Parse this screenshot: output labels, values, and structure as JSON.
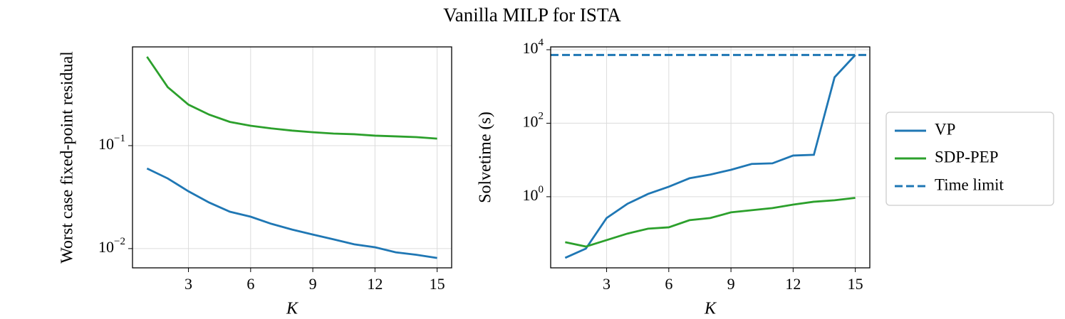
{
  "title": "Vanilla MILP for ISTA",
  "chart_data": [
    {
      "type": "line",
      "ylabel": "Worst case fixed-point residual",
      "xlabel": "K",
      "x": [
        1,
        2,
        3,
        4,
        5,
        6,
        7,
        8,
        9,
        10,
        11,
        12,
        13,
        14,
        15
      ],
      "series": [
        {
          "name": "VP",
          "color": "#1f77b4",
          "values": [
            0.06,
            0.048,
            0.036,
            0.028,
            0.0228,
            0.0204,
            0.0174,
            0.0153,
            0.0137,
            0.0123,
            0.011,
            0.0103,
            0.0092,
            0.0087,
            0.0081
          ]
        },
        {
          "name": "SDP-PEP",
          "color": "#2ca02c",
          "values": [
            0.73,
            0.37,
            0.25,
            0.2,
            0.17,
            0.156,
            0.147,
            0.14,
            0.135,
            0.131,
            0.129,
            0.125,
            0.123,
            0.121,
            0.117
          ]
        }
      ],
      "xlim": [
        0.3,
        15.7
      ],
      "ylim": [
        0.0065,
        0.91
      ],
      "yscale": "log",
      "grid": true,
      "xticks": [
        3,
        6,
        9,
        12,
        15
      ],
      "yticks": [
        {
          "value": 0.01,
          "label": "10",
          "exponent": "−2"
        },
        {
          "value": 0.1,
          "label": "10",
          "exponent": "−1"
        }
      ]
    },
    {
      "type": "line",
      "ylabel": "Solvetime (s)",
      "xlabel": "K",
      "x": [
        1,
        2,
        3,
        4,
        5,
        6,
        7,
        8,
        9,
        10,
        11,
        12,
        13,
        14,
        15
      ],
      "series": [
        {
          "name": "VP",
          "color": "#1f77b4",
          "values": [
            0.0217,
            0.0387,
            0.263,
            0.64,
            1.19,
            1.87,
            3.18,
            4.0,
            5.4,
            7.8,
            8.1,
            13.2,
            13.8,
            1780,
            7200
          ]
        },
        {
          "name": "SDP-PEP",
          "color": "#2ca02c",
          "values": [
            0.058,
            0.044,
            0.066,
            0.099,
            0.135,
            0.147,
            0.23,
            0.263,
            0.375,
            0.43,
            0.49,
            0.61,
            0.73,
            0.8,
            0.93
          ]
        }
      ],
      "hlines": [
        {
          "name": "Time limit",
          "value": 7200,
          "color": "#1f77b4",
          "style": "dashed"
        }
      ],
      "xlim": [
        0.3,
        15.7
      ],
      "ylim": [
        0.0116,
        11940
      ],
      "yscale": "log",
      "grid": true,
      "legend": "outside right",
      "xticks": [
        3,
        6,
        9,
        12,
        15
      ],
      "yticks": [
        {
          "value": 1,
          "label": "10",
          "exponent": "0"
        },
        {
          "value": 100,
          "label": "10",
          "exponent": "2"
        },
        {
          "value": 10000,
          "label": "10",
          "exponent": "4"
        }
      ]
    }
  ]
}
